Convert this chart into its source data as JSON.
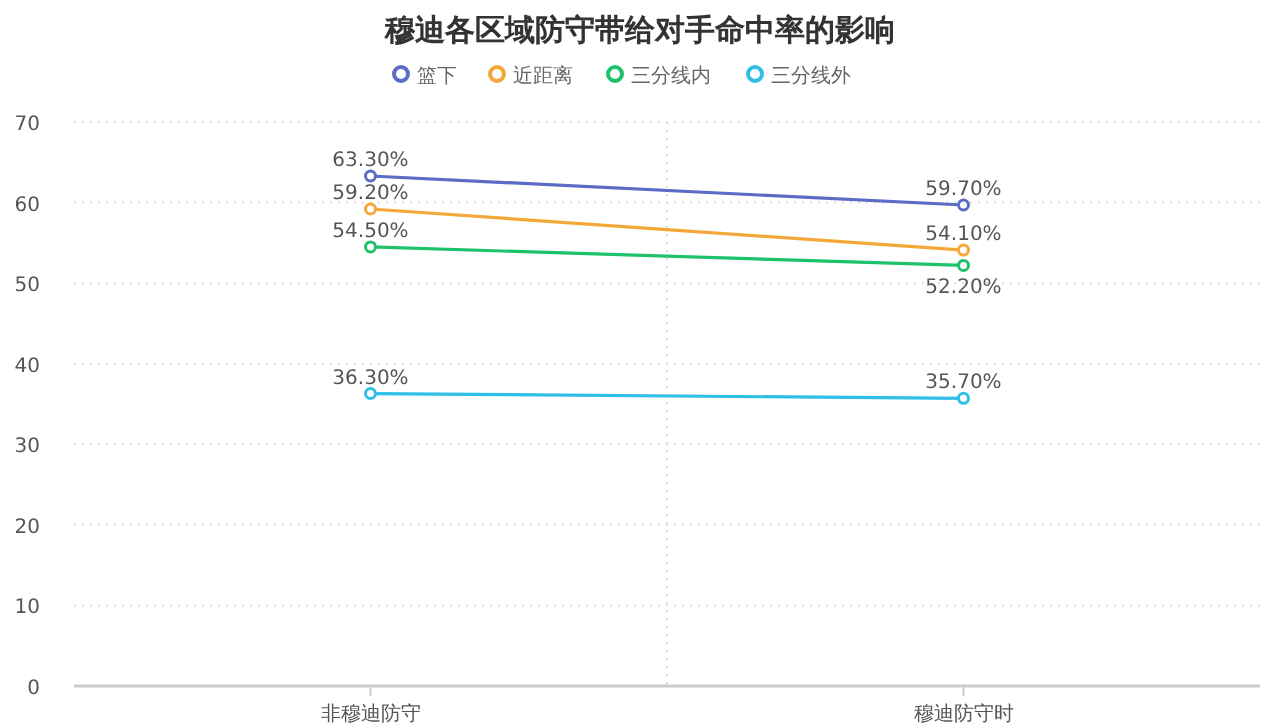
{
  "chart_data": {
    "type": "line",
    "title": "穆迪各区域防守带给对手命中率的影响",
    "categories": [
      "非穆迪防守",
      "穆迪防守时"
    ],
    "series": [
      {
        "name": "篮下",
        "color": "#5b6bc6",
        "values": [
          63.3,
          59.7
        ],
        "value_labels": [
          "63.30%",
          "59.70%"
        ]
      },
      {
        "name": "近距离",
        "color": "#f5a83a",
        "values": [
          59.2,
          54.1
        ],
        "value_labels": [
          "59.20%",
          "54.10%"
        ]
      },
      {
        "name": "三分线内",
        "color": "#1ec26a",
        "values": [
          54.5,
          52.2
        ],
        "value_labels": [
          "54.50%",
          "52.20%"
        ]
      },
      {
        "name": "三分线外",
        "color": "#2fbfe6",
        "values": [
          36.3,
          35.7
        ],
        "value_labels": [
          "36.30%",
          "35.70%"
        ]
      }
    ],
    "ylim": [
      0,
      70
    ],
    "yticks": [
      0,
      10,
      20,
      30,
      40,
      50,
      60,
      70
    ],
    "grid": true,
    "legend": "top",
    "marker": "circle",
    "line_style": "solid"
  }
}
